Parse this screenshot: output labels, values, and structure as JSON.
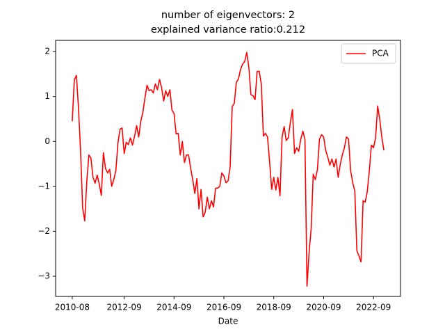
{
  "chart_data": {
    "type": "line",
    "title": "number of eigenvectors: 2",
    "subtitle": "explained variance ratio:0.212",
    "x_label": "Date",
    "legend": "upper right",
    "x": [
      "2010-08",
      "2010-09",
      "2010-10",
      "2010-11",
      "2010-12",
      "2011-01",
      "2011-02",
      "2011-03",
      "2011-04",
      "2011-05",
      "2011-06",
      "2011-07",
      "2011-08",
      "2011-09",
      "2011-10",
      "2011-11",
      "2011-12",
      "2012-01",
      "2012-02",
      "2012-03",
      "2012-04",
      "2012-05",
      "2012-06",
      "2012-07",
      "2012-08",
      "2012-09",
      "2012-10",
      "2012-11",
      "2012-12",
      "2013-01",
      "2013-02",
      "2013-03",
      "2013-04",
      "2013-05",
      "2013-06",
      "2013-07",
      "2013-08",
      "2013-09",
      "2013-10",
      "2013-11",
      "2013-12",
      "2014-01",
      "2014-02",
      "2014-03",
      "2014-04",
      "2014-05",
      "2014-06",
      "2014-07",
      "2014-08",
      "2014-09",
      "2014-10",
      "2014-11",
      "2014-12",
      "2015-01",
      "2015-02",
      "2015-03",
      "2015-04",
      "2015-05",
      "2015-06",
      "2015-07",
      "2015-08",
      "2015-09",
      "2015-10",
      "2015-11",
      "2015-12",
      "2016-01",
      "2016-02",
      "2016-03",
      "2016-04",
      "2016-05",
      "2016-06",
      "2016-07",
      "2016-08",
      "2016-09",
      "2016-10",
      "2016-11",
      "2016-12",
      "2017-01",
      "2017-02",
      "2017-03",
      "2017-04",
      "2017-05",
      "2017-06",
      "2017-07",
      "2017-08",
      "2017-09",
      "2017-10",
      "2017-11",
      "2017-12",
      "2018-01",
      "2018-02",
      "2018-03",
      "2018-04",
      "2018-05",
      "2018-06",
      "2018-07",
      "2018-08",
      "2018-09",
      "2018-10",
      "2018-11",
      "2018-12",
      "2019-01",
      "2019-02",
      "2019-03",
      "2019-04",
      "2019-05",
      "2019-06",
      "2019-07",
      "2019-08",
      "2019-09",
      "2019-10",
      "2019-11",
      "2019-12",
      "2020-01",
      "2020-02",
      "2020-03",
      "2020-04",
      "2020-05",
      "2020-06",
      "2020-07",
      "2020-08",
      "2020-09",
      "2020-10",
      "2020-11",
      "2020-12",
      "2021-01",
      "2021-02",
      "2021-03",
      "2021-04",
      "2021-05",
      "2021-06",
      "2021-07",
      "2021-08",
      "2021-09",
      "2021-10",
      "2021-11",
      "2021-12",
      "2022-01",
      "2022-02",
      "2022-03",
      "2022-04",
      "2022-05",
      "2022-06",
      "2022-07",
      "2022-08",
      "2022-09",
      "2022-10",
      "2022-11",
      "2022-12",
      "2023-01",
      "2023-02"
    ],
    "series": [
      {
        "name": "PCA",
        "color": "#ff0000",
        "values": [
          0.45,
          1.37,
          1.47,
          0.75,
          -0.2,
          -1.47,
          -1.77,
          -0.9,
          -0.3,
          -0.37,
          -0.8,
          -0.93,
          -0.75,
          -0.95,
          -1.2,
          -0.25,
          -0.6,
          -0.7,
          -0.62,
          -1.0,
          -0.85,
          -0.65,
          -0.03,
          0.27,
          0.3,
          -0.27,
          -0.02,
          -0.07,
          0.08,
          -0.08,
          0.12,
          0.35,
          0.1,
          0.45,
          0.65,
          0.97,
          1.25,
          1.13,
          1.15,
          1.08,
          1.28,
          1.15,
          1.38,
          1.2,
          0.9,
          1.13,
          1.0,
          1.15,
          0.7,
          0.62,
          0.17,
          0.18,
          -0.3,
          0.0,
          -0.47,
          -0.3,
          -0.3,
          -0.6,
          -0.85,
          -1.16,
          -0.83,
          -1.5,
          -1.07,
          -1.68,
          -1.58,
          -1.24,
          -1.5,
          -1.32,
          -1.46,
          -1.04,
          -1.04,
          -1.0,
          -0.7,
          -0.77,
          -0.92,
          -0.88,
          -0.57,
          0.78,
          0.85,
          1.32,
          1.39,
          1.6,
          1.72,
          1.78,
          1.98,
          1.65,
          1.04,
          1.02,
          0.93,
          1.56,
          1.56,
          1.28,
          0.12,
          0.18,
          0.1,
          -0.45,
          -1.07,
          -0.8,
          -1.08,
          -0.8,
          -1.21,
          0.1,
          0.33,
          0.02,
          0.08,
          0.43,
          0.71,
          -0.27,
          -0.14,
          -0.22,
          0.05,
          0.23,
          0.05,
          -3.22,
          -2.48,
          -1.94,
          -0.73,
          -0.85,
          -0.63,
          0.05,
          0.15,
          0.1,
          -0.2,
          -0.35,
          -0.53,
          -0.39,
          -0.57,
          -0.39,
          -0.8,
          -0.51,
          -0.3,
          -0.14,
          0.1,
          0.05,
          -0.65,
          -0.92,
          -1.1,
          -2.43,
          -2.55,
          -2.68,
          -1.32,
          -1.35,
          -1.12,
          -0.65,
          -0.08,
          -0.14,
          0.07,
          0.79,
          0.5,
          0.1,
          -0.2
        ]
      }
    ],
    "xlim": [
      "2009-12",
      "2023-10"
    ],
    "xticks": [
      "2010-08",
      "2012-09",
      "2014-09",
      "2016-09",
      "2018-09",
      "2020-09",
      "2022-09"
    ],
    "ylim": [
      -3.45,
      2.25
    ],
    "yticks": [
      {
        "value": -3,
        "label": "−3"
      },
      {
        "value": -2,
        "label": "−2"
      },
      {
        "value": -1,
        "label": "−1"
      },
      0,
      1,
      2
    ],
    "grid": false
  }
}
